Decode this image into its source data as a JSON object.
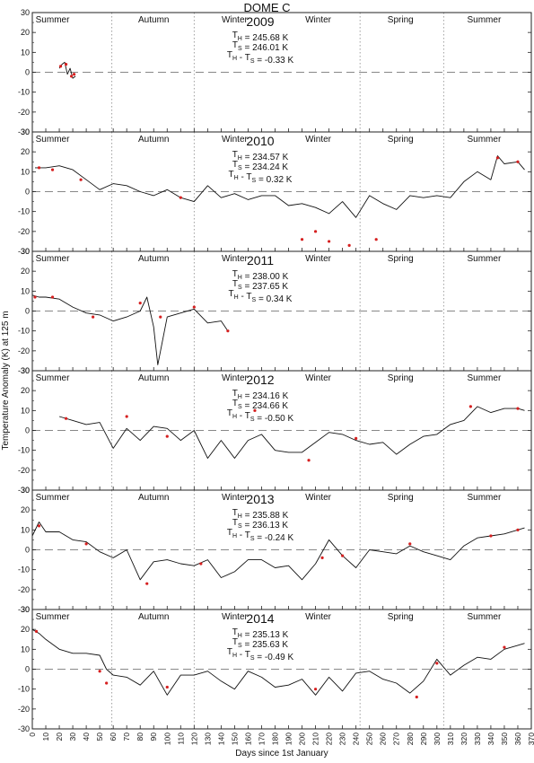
{
  "chart_data": {
    "type": "line",
    "title": "DOME C",
    "xlabel": "Days since 1st January",
    "ylabel": "Temperature Anomaly (K) at 125 m",
    "xlim": [
      0,
      370
    ],
    "ylim": [
      -30,
      30
    ],
    "xticks": [
      "0",
      "10",
      "20",
      "30",
      "40",
      "50",
      "60",
      "70",
      "80",
      "90",
      "100",
      "110",
      "120",
      "130",
      "140",
      "150",
      "160",
      "170",
      "180",
      "190",
      "200",
      "210",
      "220",
      "230",
      "240",
      "250",
      "260",
      "270",
      "280",
      "290",
      "300",
      "310",
      "320",
      "330",
      "340",
      "350",
      "360",
      "370"
    ],
    "yticks": [
      "30",
      "20",
      "10",
      "0",
      "-10",
      "-20",
      "-30"
    ],
    "season_labels": [
      {
        "text": "Summer",
        "day": 15
      },
      {
        "text": "Autumn",
        "day": 90
      },
      {
        "text": "Winter",
        "day": 150
      },
      {
        "text": "Winter",
        "day": 212
      },
      {
        "text": "Spring",
        "day": 273
      },
      {
        "text": "Summer",
        "day": 335
      }
    ],
    "season_boundaries": [
      59,
      120,
      243,
      305
    ],
    "colors": {
      "line": "#111111",
      "points": "#d62020",
      "zero_line": "#888888",
      "separator": "#888888"
    },
    "panels": [
      {
        "year": "2009",
        "stats": [
          "T_H = 245.68 K",
          "T_S = 246.01 K",
          "T_H - T_S = -0.33 K"
        ],
        "days": [
          20,
          22,
          24,
          26,
          28,
          30,
          32
        ],
        "series": [
          2,
          4,
          5,
          -1,
          2,
          -3,
          -2
        ],
        "points": [
          [
            21,
            3
          ],
          [
            25,
            4
          ],
          [
            29,
            -2
          ],
          [
            31,
            -1
          ]
        ]
      },
      {
        "year": "2010",
        "stats": [
          "T_H = 234.57 K",
          "T_S = 234.24 K",
          "T_H - T_S = 0.32 K"
        ],
        "days": [
          2,
          10,
          20,
          30,
          40,
          50,
          60,
          70,
          80,
          90,
          100,
          110,
          120,
          130,
          140,
          150,
          160,
          170,
          180,
          190,
          200,
          210,
          220,
          230,
          240,
          250,
          260,
          270,
          280,
          290,
          300,
          310,
          320,
          330,
          340,
          345,
          350,
          360,
          365
        ],
        "series": [
          12,
          12,
          13,
          11,
          6,
          1,
          4,
          3,
          0,
          -2,
          1,
          -3,
          -5,
          3,
          -3,
          -1,
          -4,
          -2,
          -2,
          -7,
          -6,
          -8,
          -11,
          -5,
          -13,
          -2,
          -6,
          -9,
          -2,
          -3,
          -2,
          -3,
          5,
          10,
          6,
          18,
          14,
          15,
          11
        ],
        "points": [
          [
            5,
            12
          ],
          [
            15,
            11
          ],
          [
            36,
            6
          ],
          [
            110,
            -3
          ],
          [
            200,
            -24
          ],
          [
            210,
            -20
          ],
          [
            220,
            -25
          ],
          [
            235,
            -27
          ],
          [
            255,
            -24
          ],
          [
            345,
            17
          ],
          [
            360,
            15
          ]
        ]
      },
      {
        "year": "2011",
        "stats": [
          "T_H = 238.00 K",
          "T_S = 237.65 K",
          "T_H - T_S = 0.34 K"
        ],
        "days": [
          0,
          5,
          10,
          20,
          30,
          40,
          50,
          60,
          70,
          80,
          85,
          90,
          93,
          100,
          110,
          120,
          130,
          140,
          145
        ],
        "series": [
          8,
          7,
          7,
          6,
          2,
          -1,
          -2,
          -5,
          -3,
          0,
          7,
          -8,
          -27,
          -3,
          -1,
          1,
          -6,
          -5,
          -10
        ],
        "points": [
          [
            2,
            7
          ],
          [
            15,
            7
          ],
          [
            45,
            -3
          ],
          [
            80,
            4
          ],
          [
            95,
            -3
          ],
          [
            120,
            2
          ],
          [
            145,
            -10
          ]
        ]
      },
      {
        "year": "2012",
        "stats": [
          "T_H = 234.16 K",
          "T_S = 234.66 K",
          "T_H - T_S = -0.50 K"
        ],
        "days": [
          20,
          30,
          40,
          50,
          60,
          70,
          80,
          90,
          100,
          110,
          120,
          130,
          140,
          150,
          160,
          170,
          180,
          190,
          200,
          210,
          220,
          230,
          240,
          250,
          260,
          270,
          280,
          290,
          300,
          310,
          320,
          330,
          340,
          350,
          360,
          365
        ],
        "series": [
          7,
          5,
          3,
          4,
          -9,
          1,
          -5,
          2,
          1,
          -5,
          0,
          -14,
          -5,
          -14,
          -5,
          -2,
          -10,
          -11,
          -11,
          -6,
          -1,
          -2,
          -5,
          -7,
          -6,
          -12,
          -7,
          -3,
          -2,
          3,
          5,
          12,
          9,
          11,
          11,
          10
        ],
        "points": [
          [
            25,
            6
          ],
          [
            70,
            7
          ],
          [
            100,
            -3
          ],
          [
            165,
            10
          ],
          [
            205,
            -15
          ],
          [
            240,
            -4
          ],
          [
            325,
            12
          ],
          [
            360,
            11
          ]
        ]
      },
      {
        "year": "2013",
        "stats": [
          "T_H = 235.88 K",
          "T_S = 236.13 K",
          "T_H - T_S = -0.24 K"
        ],
        "days": [
          0,
          5,
          10,
          20,
          30,
          40,
          50,
          60,
          70,
          80,
          90,
          100,
          110,
          120,
          130,
          140,
          150,
          160,
          170,
          180,
          190,
          200,
          210,
          220,
          230,
          240,
          250,
          260,
          270,
          280,
          290,
          300,
          310,
          320,
          330,
          340,
          350,
          360,
          365
        ],
        "series": [
          7,
          14,
          9,
          9,
          5,
          4,
          -1,
          -4,
          0,
          -15,
          -6,
          -5,
          -7,
          -8,
          -5,
          -14,
          -11,
          -5,
          -5,
          -9,
          -8,
          -15,
          -7,
          5,
          -3,
          -9,
          0,
          -1,
          -2,
          2,
          -1,
          -3,
          -5,
          2,
          6,
          7,
          8,
          10,
          11
        ],
        "points": [
          [
            5,
            12
          ],
          [
            40,
            3
          ],
          [
            85,
            -17
          ],
          [
            125,
            -7
          ],
          [
            215,
            -4
          ],
          [
            230,
            -3
          ],
          [
            280,
            3
          ],
          [
            340,
            7
          ],
          [
            360,
            10
          ]
        ]
      },
      {
        "year": "2014",
        "stats": [
          "T_H = 235.13 K",
          "T_S = 235.63 K",
          "T_H - T_S = -0.49 K"
        ],
        "days": [
          0,
          5,
          10,
          20,
          30,
          40,
          50,
          55,
          60,
          70,
          80,
          90,
          100,
          110,
          120,
          130,
          140,
          150,
          160,
          170,
          180,
          190,
          200,
          210,
          220,
          230,
          240,
          250,
          260,
          270,
          280,
          290,
          300,
          310,
          320,
          330,
          340,
          350,
          360,
          365
        ],
        "series": [
          20,
          18,
          15,
          10,
          8,
          8,
          7,
          0,
          -3,
          -4,
          -8,
          -1,
          -13,
          -3,
          -3,
          -1,
          -6,
          -10,
          -1,
          -4,
          -9,
          -8,
          -5,
          -13,
          -4,
          -11,
          -2,
          -1,
          -5,
          -7,
          -12,
          -6,
          5,
          -3,
          2,
          6,
          5,
          10,
          12,
          13
        ],
        "points": [
          [
            3,
            19
          ],
          [
            50,
            -1
          ],
          [
            55,
            -7
          ],
          [
            100,
            -9
          ],
          [
            210,
            -10
          ],
          [
            285,
            -14
          ],
          [
            300,
            3
          ],
          [
            350,
            11
          ]
        ]
      }
    ]
  }
}
